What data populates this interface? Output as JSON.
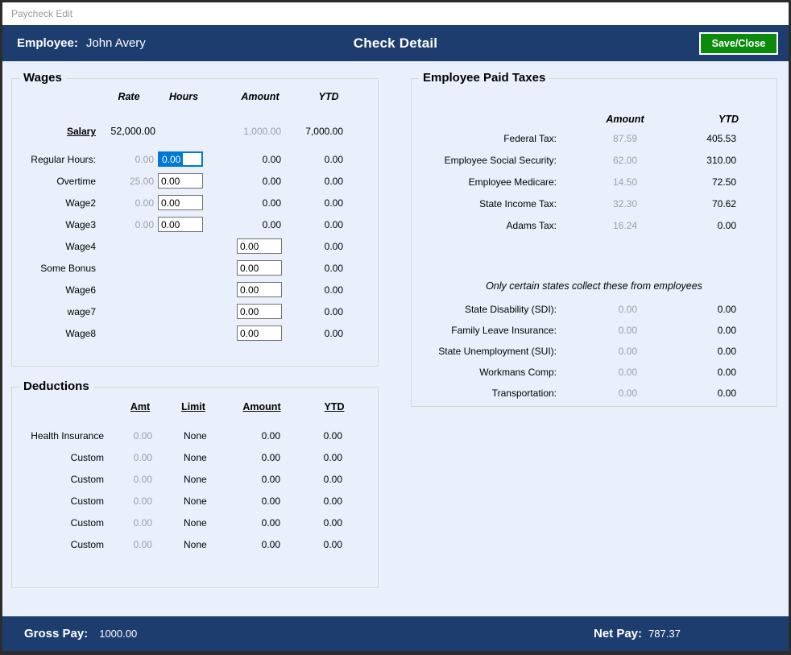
{
  "window": {
    "title": "Paycheck Edit"
  },
  "header": {
    "employee_label": "Employee:",
    "employee_name": "John Avery",
    "title": "Check Detail",
    "save_button": "Save/Close"
  },
  "wages": {
    "title": "Wages",
    "headers": {
      "rate": "Rate",
      "hours": "Hours",
      "amount": "Amount",
      "ytd": "YTD"
    },
    "salary": {
      "label": "Salary",
      "rate": "52,000.00",
      "amount": "1,000.00",
      "ytd": "7,000.00"
    },
    "rows": [
      {
        "label": "Regular Hours:",
        "rate": "0.00",
        "hours": "0.00",
        "amount": "0.00",
        "ytd": "0.00"
      },
      {
        "label": "Overtime",
        "rate": "25.00",
        "hours": "0.00",
        "amount": "0.00",
        "ytd": "0.00"
      },
      {
        "label": "Wage2",
        "rate": "0.00",
        "hours": "0.00",
        "amount": "0.00",
        "ytd": "0.00"
      },
      {
        "label": "Wage3",
        "rate": "0.00",
        "hours": "0.00",
        "amount": "0.00",
        "ytd": "0.00"
      },
      {
        "label": "Wage4",
        "amount_input": "0.00",
        "ytd": "0.00"
      },
      {
        "label": "Some Bonus",
        "amount_input": "0.00",
        "ytd": "0.00"
      },
      {
        "label": "Wage6",
        "amount_input": "0.00",
        "ytd": "0.00"
      },
      {
        "label": "wage7",
        "amount_input": "0.00",
        "ytd": "0.00"
      },
      {
        "label": "Wage8",
        "amount_input": "0.00",
        "ytd": "0.00"
      }
    ]
  },
  "deductions": {
    "title": "Deductions",
    "headers": {
      "amt": "Amt",
      "limit": "Limit",
      "amount": "Amount",
      "ytd": "YTD"
    },
    "rows": [
      {
        "label": "Health Insurance",
        "amt": "0.00",
        "limit": "None",
        "amount": "0.00",
        "ytd": "0.00"
      },
      {
        "label": "Custom",
        "amt": "0.00",
        "limit": "None",
        "amount": "0.00",
        "ytd": "0.00"
      },
      {
        "label": "Custom",
        "amt": "0.00",
        "limit": "None",
        "amount": "0.00",
        "ytd": "0.00"
      },
      {
        "label": "Custom",
        "amt": "0.00",
        "limit": "None",
        "amount": "0.00",
        "ytd": "0.00"
      },
      {
        "label": "Custom",
        "amt": "0.00",
        "limit": "None",
        "amount": "0.00",
        "ytd": "0.00"
      },
      {
        "label": "Custom",
        "amt": "0.00",
        "limit": "None",
        "amount": "0.00",
        "ytd": "0.00"
      }
    ]
  },
  "taxes": {
    "title": "Employee Paid Taxes",
    "headers": {
      "amount": "Amount",
      "ytd": "YTD"
    },
    "rows": [
      {
        "label": "Federal Tax:",
        "amount": "87.59",
        "ytd": "405.53"
      },
      {
        "label": "Employee Social Security:",
        "amount": "62.00",
        "ytd": "310.00"
      },
      {
        "label": "Employee Medicare:",
        "amount": "14.50",
        "ytd": "72.50"
      },
      {
        "label": "State Income Tax:",
        "amount": "32.30",
        "ytd": "70.62"
      },
      {
        "label": "Adams Tax:",
        "amount": "16.24",
        "ytd": "0.00"
      }
    ],
    "note": "Only certain states collect these from employees",
    "state_rows": [
      {
        "label": "State Disability (SDI):",
        "amount": "0.00",
        "ytd": "0.00"
      },
      {
        "label": "Family Leave Insurance:",
        "amount": "0.00",
        "ytd": "0.00"
      },
      {
        "label": "State Unemployment (SUI):",
        "amount": "0.00",
        "ytd": "0.00"
      },
      {
        "label": "Workmans Comp:",
        "amount": "0.00",
        "ytd": "0.00"
      },
      {
        "label": "Transportation:",
        "amount": "0.00",
        "ytd": "0.00"
      }
    ]
  },
  "footer": {
    "gross_label": "Gross Pay:",
    "gross_value": "1000.00",
    "net_label": "Net Pay:",
    "net_value": "787.37"
  },
  "colors": {
    "header_bg": "#1d3d6f",
    "footer_bg": "#1d3d6f",
    "save_button_bg": "#0b8a0b",
    "body_bg": "#e9f0fb",
    "focus": "#0078d7",
    "muted": "#999fa6",
    "title_text": "#9a9a9a",
    "box_border": "#d8d8d0",
    "window_border": "#2c2c2c"
  }
}
